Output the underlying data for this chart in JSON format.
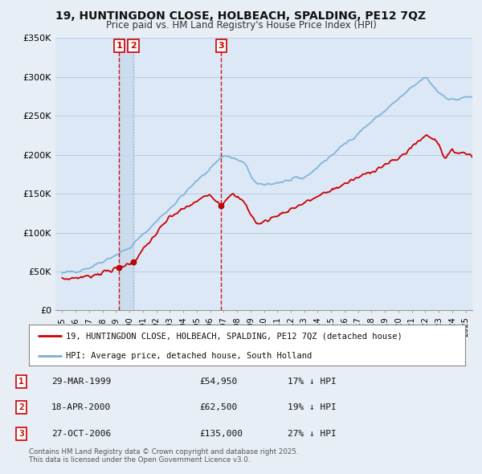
{
  "title": "19, HUNTINGDON CLOSE, HOLBEACH, SPALDING, PE12 7QZ",
  "subtitle": "Price paid vs. HM Land Registry's House Price Index (HPI)",
  "red_label": "19, HUNTINGDON CLOSE, HOLBEACH, SPALDING, PE12 7QZ (detached house)",
  "blue_label": "HPI: Average price, detached house, South Holland",
  "transactions": [
    {
      "num": 1,
      "date": "29-MAR-1999",
      "price": 54950,
      "pct": "17%",
      "x_year": 1999.24,
      "line_color": "#cc0000",
      "line_style": "--"
    },
    {
      "num": 2,
      "date": "18-APR-2000",
      "price": 62500,
      "pct": "19%",
      "x_year": 2000.3,
      "line_color": "#88aacc",
      "line_style": ":"
    },
    {
      "num": 3,
      "date": "27-OCT-2006",
      "price": 135000,
      "pct": "27%",
      "x_year": 2006.82,
      "line_color": "#cc0000",
      "line_style": "--"
    }
  ],
  "footer1": "Contains HM Land Registry data © Crown copyright and database right 2025.",
  "footer2": "This data is licensed under the Open Government Licence v3.0.",
  "ylim": [
    0,
    350000
  ],
  "xlim": [
    1994.5,
    2025.5
  ],
  "yticks": [
    0,
    50000,
    100000,
    150000,
    200000,
    250000,
    300000,
    350000
  ],
  "ytick_labels": [
    "£0",
    "£50K",
    "£100K",
    "£150K",
    "£200K",
    "£250K",
    "£300K",
    "£350K"
  ],
  "background_color": "#e8eef5",
  "plot_bg": "#dce8f5",
  "red_color": "#cc0000",
  "blue_color": "#7bafd4",
  "highlight_color": "#c5d8ec"
}
